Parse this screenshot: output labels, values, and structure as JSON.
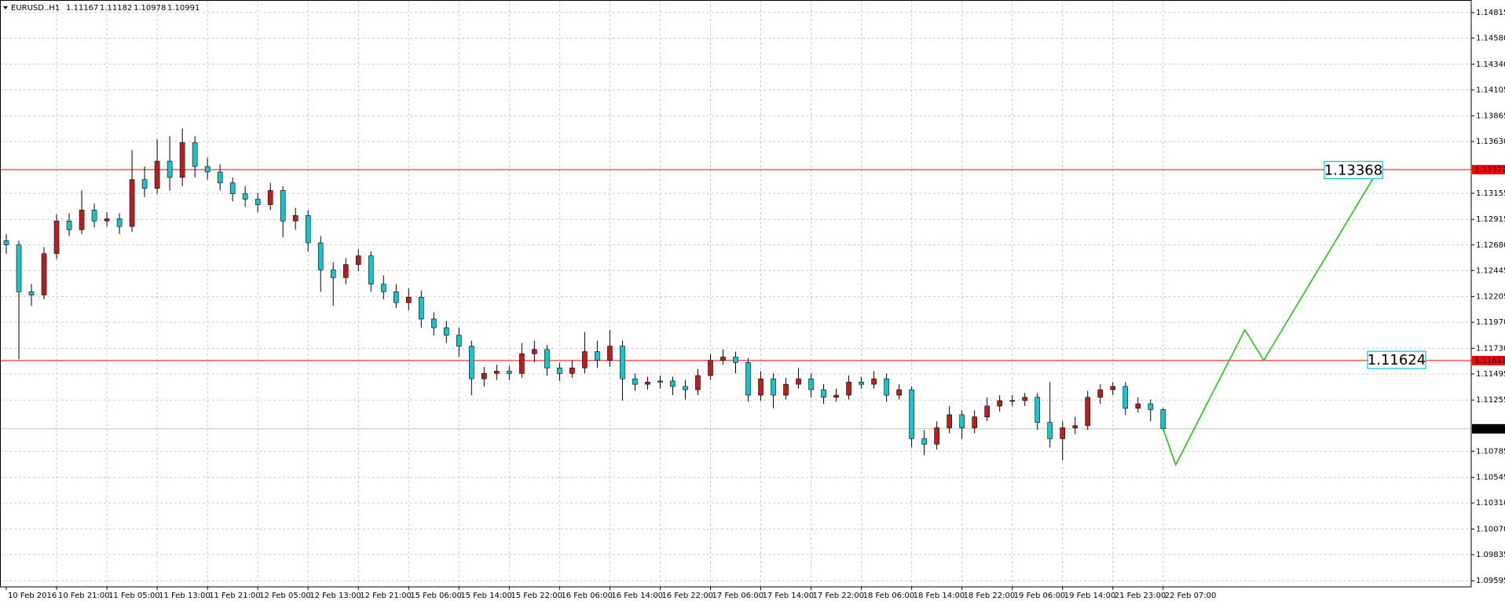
{
  "chart_data": {
    "type": "candlestick",
    "header": {
      "symbol": "EURUSD..H1",
      "ohlc": [
        1.11167,
        1.11182,
        1.10978,
        1.10991
      ]
    },
    "up_color": "#b22222",
    "down_color": "#20c0c8",
    "wick_color": "#000000",
    "xlim": [
      -1,
      233
    ],
    "xticks": [
      {
        "value": 0,
        "label": "10 Feb 2016"
      },
      {
        "value": 8,
        "label": "10 Feb 21:00"
      },
      {
        "value": 16,
        "label": "11 Feb 05:00"
      },
      {
        "value": 24,
        "label": "11 Feb 13:00"
      },
      {
        "value": 32,
        "label": "11 Feb 21:00"
      },
      {
        "value": 40,
        "label": "12 Feb 05:00"
      },
      {
        "value": 48,
        "label": "12 Feb 13:00"
      },
      {
        "value": 56,
        "label": "12 Feb 21:00"
      },
      {
        "value": 64,
        "label": "15 Feb 06:00"
      },
      {
        "value": 72,
        "label": "15 Feb 14:00"
      },
      {
        "value": 80,
        "label": "15 Feb 22:00"
      },
      {
        "value": 88,
        "label": "16 Feb 06:00"
      },
      {
        "value": 96,
        "label": "16 Feb 14:00"
      },
      {
        "value": 104,
        "label": "16 Feb 22:00"
      },
      {
        "value": 112,
        "label": "17 Feb 06:00"
      },
      {
        "value": 120,
        "label": "17 Feb 14:00"
      },
      {
        "value": 128,
        "label": "17 Feb 22:00"
      },
      {
        "value": 136,
        "label": "18 Feb 06:00"
      },
      {
        "value": 144,
        "label": "18 Feb 14:00"
      },
      {
        "value": 152,
        "label": "18 Feb 22:00"
      },
      {
        "value": 160,
        "label": "19 Feb 06:00"
      },
      {
        "value": 168,
        "label": "19 Feb 14:00"
      },
      {
        "value": 176,
        "label": "21 Feb 23:00"
      },
      {
        "value": 184,
        "label": "22 Feb 07:00"
      }
    ],
    "ylim": [
      1.09539,
      1.1493
    ],
    "yticks": [
      1.14815,
      {
        "value": 1.1458,
        "label": "1.14580"
      },
      {
        "value": 1.1434,
        "label": "1.14340"
      },
      1.14105,
      1.13865,
      {
        "value": 1.1363,
        "label": "1.13630"
      },
      1.13155,
      1.12915,
      {
        "value": 1.1268,
        "label": "1.12680"
      },
      1.12445,
      1.12205,
      {
        "value": 1.1197,
        "label": "1.11970"
      },
      {
        "value": 1.1173,
        "label": "1.11730"
      },
      1.11495,
      1.11255,
      1.10785,
      1.10545,
      {
        "value": 1.1031,
        "label": "1.10310"
      },
      {
        "value": 1.1007,
        "label": "1.10070"
      },
      1.09835,
      1.09595
    ],
    "grid": true,
    "x": [
      0,
      2,
      4,
      6,
      8,
      10,
      12,
      14,
      16,
      18,
      20,
      22,
      24,
      26,
      28,
      30,
      32,
      34,
      36,
      38,
      40,
      42,
      44,
      46,
      48,
      50,
      52,
      54,
      56,
      58,
      60,
      62,
      64,
      66,
      68,
      70,
      72,
      74,
      76,
      78,
      80,
      82,
      84,
      86,
      88,
      90,
      92,
      94,
      96,
      98,
      100,
      102,
      104,
      106,
      108,
      110,
      112,
      114,
      116,
      118,
      120,
      122,
      124,
      126,
      128,
      130,
      132,
      134,
      136,
      138,
      140,
      142,
      144,
      146,
      148,
      150,
      152,
      154,
      156,
      158,
      160,
      162,
      164,
      166,
      168,
      170,
      172,
      174,
      176,
      178,
      180,
      182,
      184
    ],
    "open": [
      1.1272,
      1.1268,
      1.1225,
      1.1222,
      1.126,
      1.129,
      1.1282,
      1.13,
      1.129,
      1.1292,
      1.1285,
      1.1328,
      1.132,
      1.1345,
      1.133,
      1.1362,
      1.134,
      1.1335,
      1.1325,
      1.1315,
      1.131,
      1.1305,
      1.1318,
      1.129,
      1.1295,
      1.127,
      1.1245,
      1.1238,
      1.125,
      1.1258,
      1.1232,
      1.1225,
      1.1215,
      1.122,
      1.12,
      1.1192,
      1.1185,
      1.1175,
      1.1145,
      1.115,
      1.1152,
      1.115,
      1.1168,
      1.1172,
      1.1155,
      1.115,
      1.1155,
      1.117,
      1.1162,
      1.1175,
      1.1145,
      1.114,
      1.1142,
      1.1143,
      1.1138,
      1.1135,
      1.1148,
      1.1162,
      1.1165,
      1.116,
      1.113,
      1.1145,
      1.113,
      1.114,
      1.1145,
      1.1135,
      1.1128,
      1.113,
      1.1142,
      1.114,
      1.1145,
      1.113,
      1.1135,
      1.109,
      1.1085,
      1.11,
      1.1112,
      1.11,
      1.111,
      1.112,
      1.1125,
      1.1125,
      1.1128,
      1.1105,
      1.109,
      1.11,
      1.1102,
      1.1128,
      1.1135,
      1.1138,
      1.1118,
      1.1122,
      1.11167
    ],
    "high": [
      1.1278,
      1.1272,
      1.1232,
      1.1266,
      1.1296,
      1.1297,
      1.1318,
      1.1306,
      1.1298,
      1.1297,
      1.1355,
      1.134,
      1.1365,
      1.1368,
      1.1375,
      1.1368,
      1.1348,
      1.1342,
      1.133,
      1.1322,
      1.1316,
      1.1325,
      1.1322,
      1.1302,
      1.13,
      1.1276,
      1.1252,
      1.1256,
      1.1264,
      1.1262,
      1.124,
      1.1232,
      1.1228,
      1.1226,
      1.1206,
      1.1198,
      1.1192,
      1.118,
      1.1156,
      1.1158,
      1.1157,
      1.1178,
      1.118,
      1.1176,
      1.116,
      1.1162,
      1.1188,
      1.118,
      1.119,
      1.118,
      1.115,
      1.1147,
      1.1148,
      1.1147,
      1.1144,
      1.1154,
      1.1168,
      1.1172,
      1.117,
      1.1164,
      1.1152,
      1.115,
      1.1146,
      1.1155,
      1.115,
      1.114,
      1.1136,
      1.1148,
      1.1147,
      1.1152,
      1.115,
      1.114,
      1.1138,
      1.1098,
      1.1106,
      1.112,
      1.1116,
      1.1116,
      1.1128,
      1.113,
      1.113,
      1.1132,
      1.1132,
      1.1142,
      1.1106,
      1.111,
      1.1134,
      1.114,
      1.1142,
      1.1142,
      1.1128,
      1.1126,
      1.11182
    ],
    "low": [
      1.126,
      1.1163,
      1.1212,
      1.1218,
      1.1255,
      1.1276,
      1.1278,
      1.1284,
      1.1285,
      1.1278,
      1.128,
      1.1312,
      1.1315,
      1.1318,
      1.1322,
      1.133,
      1.1328,
      1.1318,
      1.1308,
      1.1303,
      1.1298,
      1.13,
      1.1275,
      1.1282,
      1.1262,
      1.1225,
      1.1212,
      1.1232,
      1.1244,
      1.1225,
      1.1218,
      1.121,
      1.1208,
      1.1192,
      1.1185,
      1.1178,
      1.1165,
      1.113,
      1.1138,
      1.1144,
      1.1144,
      1.1146,
      1.116,
      1.1148,
      1.1143,
      1.1146,
      1.115,
      1.1155,
      1.1156,
      1.1125,
      1.1134,
      1.1135,
      1.1136,
      1.113,
      1.1126,
      1.113,
      1.1144,
      1.1158,
      1.115,
      1.1124,
      1.1125,
      1.1118,
      1.1126,
      1.1136,
      1.1128,
      1.1122,
      1.1124,
      1.1126,
      1.1136,
      1.1136,
      1.1124,
      1.1126,
      1.1082,
      1.1075,
      1.108,
      1.1095,
      1.109,
      1.1095,
      1.1106,
      1.1115,
      1.112,
      1.112,
      1.1098,
      1.1082,
      1.107,
      1.1094,
      1.1098,
      1.1122,
      1.113,
      1.1112,
      1.1114,
      1.1106,
      1.10978
    ],
    "close": [
      1.1268,
      1.1225,
      1.1222,
      1.126,
      1.129,
      1.1282,
      1.13,
      1.129,
      1.1292,
      1.1285,
      1.1328,
      1.132,
      1.1345,
      1.133,
      1.1362,
      1.134,
      1.1335,
      1.1325,
      1.1315,
      1.131,
      1.1305,
      1.1318,
      1.129,
      1.1295,
      1.127,
      1.1245,
      1.1238,
      1.125,
      1.1258,
      1.1232,
      1.1225,
      1.1215,
      1.122,
      1.12,
      1.1192,
      1.1185,
      1.1175,
      1.1145,
      1.115,
      1.1152,
      1.115,
      1.1168,
      1.1172,
      1.1155,
      1.115,
      1.1155,
      1.117,
      1.1162,
      1.1175,
      1.1145,
      1.114,
      1.1142,
      1.1143,
      1.1138,
      1.1135,
      1.1148,
      1.1162,
      1.1165,
      1.116,
      1.113,
      1.1145,
      1.113,
      1.114,
      1.1145,
      1.1135,
      1.1128,
      1.113,
      1.1142,
      1.114,
      1.1145,
      1.113,
      1.1135,
      1.109,
      1.1085,
      1.11,
      1.1112,
      1.11,
      1.111,
      1.112,
      1.1125,
      1.1125,
      1.1128,
      1.1105,
      1.109,
      1.11,
      1.1102,
      1.1128,
      1.1135,
      1.1138,
      1.1118,
      1.1122,
      1.11167,
      1.10991
    ],
    "hlines": [
      {
        "value": 1.13372,
        "color": "#ff0000",
        "label_bg": "#ff0000",
        "label_fg": "#ffffff"
      },
      {
        "value": 1.11618,
        "color": "#ff0000",
        "label_bg": "#ff0000",
        "label_fg": "#ffffff"
      },
      {
        "value": 1.10991,
        "color": "#c0c0c0",
        "label_bg": "#000000",
        "label_fg": "#ffffff"
      }
    ],
    "projection": {
      "x": [
        184,
        186,
        197,
        200,
        218
      ],
      "values": [
        1.1099,
        1.1066,
        1.119,
        1.1162,
        1.1335
      ],
      "color": "#22c022"
    },
    "annotations": [
      {
        "value": 1.13368,
        "color": "#00c8d0"
      },
      {
        "value": 1.11624,
        "color": "#00c8d0"
      }
    ]
  }
}
